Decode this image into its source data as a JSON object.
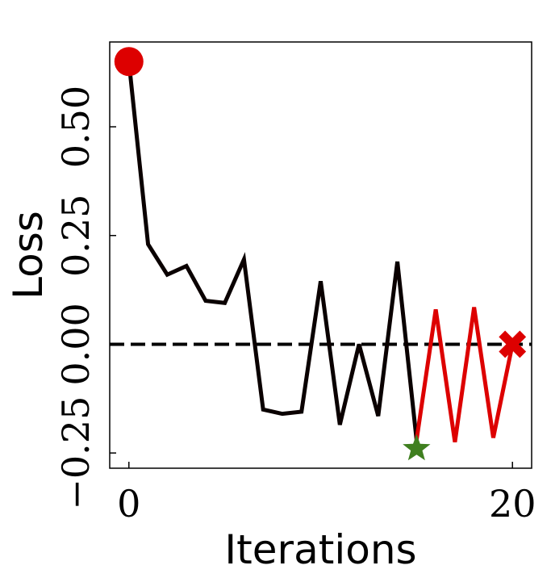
{
  "chart_data": {
    "type": "line",
    "xlabel": "Iterations",
    "ylabel": "Loss",
    "xlim": [
      -1,
      21
    ],
    "ylim": [
      -0.285,
      0.695
    ],
    "x_ticks": [
      0,
      20
    ],
    "x_tick_labels": [
      "0",
      "20"
    ],
    "y_ticks": [
      -0.25,
      0,
      0.25,
      0.5
    ],
    "y_tick_labels": [
      "−0.25",
      "0.00",
      "0.25",
      "0.50"
    ],
    "grid": false,
    "reference_line": {
      "y": 0,
      "style": "dashed",
      "color": "#000000"
    },
    "series": [
      {
        "color": "#0a0000",
        "x": [
          0,
          1,
          2,
          3,
          4,
          5,
          6,
          7,
          8,
          9,
          10,
          11,
          12,
          13,
          14,
          15
        ],
        "y": [
          0.65,
          0.23,
          0.16,
          0.18,
          0.1,
          0.095,
          0.195,
          -0.15,
          -0.16,
          -0.155,
          0.145,
          -0.185,
          0.0,
          -0.165,
          0.19,
          -0.22
        ]
      },
      {
        "color": "#dd0000",
        "x": [
          15,
          16,
          17,
          18,
          19,
          20
        ],
        "y": [
          -0.22,
          0.08,
          -0.225,
          0.085,
          -0.215,
          0.0
        ]
      }
    ],
    "markers": [
      {
        "shape": "circle",
        "color": "#dd0000",
        "x": 0,
        "y": 0.65
      },
      {
        "shape": "star",
        "color": "#3f7f1f",
        "x": 15,
        "y": -0.24
      },
      {
        "shape": "x",
        "color": "#dd0000",
        "x": 20,
        "y": 0.0
      }
    ]
  }
}
